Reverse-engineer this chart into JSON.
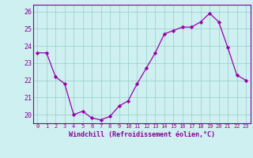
{
  "x": [
    0,
    1,
    2,
    3,
    4,
    5,
    6,
    7,
    8,
    9,
    10,
    11,
    12,
    13,
    14,
    15,
    16,
    17,
    18,
    19,
    20,
    21,
    22,
    23
  ],
  "y": [
    23.6,
    23.6,
    22.2,
    21.8,
    20.0,
    20.2,
    19.8,
    19.7,
    19.9,
    20.5,
    20.8,
    21.8,
    22.7,
    23.6,
    24.7,
    24.9,
    25.1,
    25.1,
    25.4,
    25.9,
    25.4,
    23.9,
    22.3,
    22.0
  ],
  "line_color": "#9900aa",
  "marker_color": "#9900aa",
  "bg_color": "#cef0f0",
  "grid_color": "#99cccc",
  "xlabel": "Windchill (Refroidissement éolien,°C)",
  "ylim": [
    19.5,
    26.4
  ],
  "yticks": [
    20,
    21,
    22,
    23,
    24,
    25,
    26
  ],
  "xlim": [
    -0.5,
    23.5
  ],
  "font_color": "#880099"
}
